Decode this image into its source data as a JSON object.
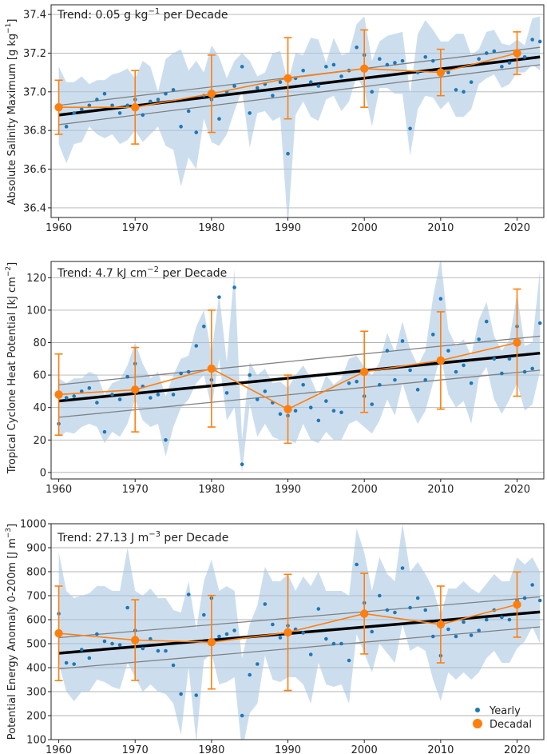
{
  "colors": {
    "yearly": "#1f77b4",
    "decadal": "#ff7f0e",
    "band": "#aac8e2",
    "trend_line": "#000000",
    "trend_ci": "#808080",
    "grid": "#b0b0b0"
  },
  "legend": {
    "yearly": "Yearly",
    "decadal": "Decadal",
    "position": "bottom-right"
  },
  "chart_data": [
    {
      "type": "scatter",
      "id": "salinity",
      "ylabel": "Absolute Salinity Maximum [g kg$^{-1}$]",
      "ylabel_parts": [
        "Absolute Salinity Maximum [g kg",
        "−1",
        "]"
      ],
      "trend_parts": [
        "Trend: 0.05 g kg",
        "−1",
        " per Decade"
      ],
      "xlim": [
        1959,
        2023.5
      ],
      "ylim": [
        36.35,
        37.45
      ],
      "xticks": [
        1960,
        1970,
        1980,
        1990,
        2000,
        2010,
        2020
      ],
      "yticks": [
        36.4,
        36.6,
        36.8,
        37.0,
        37.2,
        37.4
      ],
      "ytick_labels": [
        "36.4",
        "36.6",
        "36.8",
        "37.0",
        "37.2",
        "37.4"
      ],
      "years": [
        1960,
        1961,
        1962,
        1963,
        1964,
        1965,
        1966,
        1967,
        1968,
        1969,
        1970,
        1971,
        1972,
        1973,
        1974,
        1975,
        1976,
        1977,
        1978,
        1979,
        1980,
        1981,
        1982,
        1983,
        1984,
        1985,
        1986,
        1987,
        1988,
        1989,
        1990,
        1991,
        1992,
        1993,
        1994,
        1995,
        1996,
        1997,
        1998,
        1999,
        2000,
        2001,
        2002,
        2003,
        2004,
        2005,
        2006,
        2007,
        2008,
        2009,
        2010,
        2011,
        2012,
        2013,
        2014,
        2015,
        2016,
        2017,
        2018,
        2019,
        2020,
        2021,
        2022,
        2023
      ],
      "yearly": [
        36.93,
        36.82,
        36.89,
        36.91,
        36.93,
        36.96,
        36.99,
        36.93,
        36.89,
        36.93,
        36.96,
        36.88,
        36.95,
        36.96,
        36.99,
        37.01,
        36.82,
        36.9,
        36.79,
        36.98,
        36.96,
        36.86,
        37.0,
        37.03,
        37.13,
        36.89,
        37.02,
        37.04,
        36.98,
        37.05,
        36.68,
        37.07,
        37.11,
        37.05,
        37.03,
        37.13,
        37.14,
        37.08,
        37.11,
        37.23,
        37.19,
        37.0,
        37.17,
        37.14,
        37.15,
        37.16,
        36.81,
        37.1,
        37.18,
        37.16,
        37.1,
        37.1,
        37.01,
        37.0,
        37.05,
        37.17,
        37.2,
        37.21,
        37.13,
        37.15,
        37.2,
        37.18,
        37.27,
        37.26
      ],
      "band_upper": [
        37.13,
        37.05,
        37.05,
        37.08,
        37.04,
        37.06,
        37.06,
        37.09,
        37.1,
        37.12,
        37.07,
        37.16,
        37.13,
        37.0,
        37.17,
        37.2,
        37.22,
        37.11,
        37.16,
        37.1,
        37.24,
        37.18,
        37.07,
        37.16,
        37.2,
        37.16,
        37.08,
        37.1,
        37.2,
        37.21,
        37.05,
        37.2,
        37.19,
        37.28,
        37.27,
        37.15,
        37.28,
        37.19,
        37.2,
        37.35,
        37.39,
        37.16,
        37.26,
        37.29,
        37.3,
        37.31,
        36.99,
        37.3,
        37.37,
        37.32,
        37.26,
        37.26,
        37.3,
        37.3,
        37.19,
        37.22,
        37.31,
        37.32,
        37.25,
        37.24,
        37.27,
        37.24,
        37.38,
        37.39
      ],
      "band_lower": [
        36.73,
        36.63,
        36.73,
        36.74,
        36.82,
        36.78,
        36.76,
        36.78,
        36.73,
        36.75,
        36.8,
        36.74,
        36.78,
        36.82,
        36.72,
        36.7,
        36.51,
        36.66,
        36.6,
        36.86,
        36.74,
        36.72,
        36.78,
        36.9,
        37.01,
        36.71,
        36.89,
        36.9,
        36.85,
        36.87,
        36.3,
        36.88,
        36.95,
        36.87,
        36.85,
        36.96,
        36.98,
        36.9,
        36.95,
        37.08,
        37.01,
        36.82,
        37.02,
        37.02,
        36.99,
        36.99,
        36.67,
        36.91,
        36.98,
        36.97,
        36.91,
        36.95,
        36.87,
        36.87,
        36.91,
        37.04,
        37.07,
        37.09,
        37.02,
        37.04,
        37.1,
        37.1,
        37.14,
        37.11
      ],
      "decadal": {
        "x": [
          1960,
          1970,
          1980,
          1990,
          2000,
          2010,
          2020
        ],
        "y": [
          36.92,
          36.92,
          36.99,
          37.07,
          37.12,
          37.1,
          37.2
        ],
        "err": [
          0.14,
          0.19,
          0.2,
          0.21,
          0.2,
          0.12,
          0.11
        ]
      },
      "trend": {
        "x": [
          1960,
          2023
        ],
        "y": [
          36.88,
          37.18
        ],
        "ci_upper": [
          36.93,
          37.23
        ],
        "ci_lower": [
          36.83,
          37.14
        ]
      }
    },
    {
      "type": "scatter",
      "id": "tchp",
      "ylabel": "Tropical Cyclone Heat Potential [kJ cm$^{-2}$]",
      "ylabel_parts": [
        "Tropical Cyclone Heat Potential [kJ cm",
        "−2",
        "]"
      ],
      "trend_parts": [
        "Trend: 4.7 kJ cm",
        "−2",
        " per Decade"
      ],
      "xlim": [
        1959,
        2023.5
      ],
      "ylim": [
        -4,
        130
      ],
      "xticks": [
        1960,
        1970,
        1980,
        1990,
        2000,
        2010,
        2020
      ],
      "yticks": [
        0,
        20,
        40,
        60,
        80,
        100,
        120
      ],
      "ytick_labels": [
        "0",
        "20",
        "40",
        "60",
        "80",
        "100",
        "120"
      ],
      "years": [
        1960,
        1961,
        1962,
        1963,
        1964,
        1965,
        1966,
        1967,
        1968,
        1969,
        1970,
        1971,
        1972,
        1973,
        1974,
        1975,
        1976,
        1977,
        1978,
        1979,
        1980,
        1981,
        1982,
        1983,
        1984,
        1985,
        1986,
        1987,
        1988,
        1989,
        1990,
        1991,
        1992,
        1993,
        1994,
        1995,
        1996,
        1997,
        1998,
        1999,
        2000,
        2001,
        2002,
        2003,
        2004,
        2005,
        2006,
        2007,
        2008,
        2009,
        2010,
        2011,
        2012,
        2013,
        2014,
        2015,
        2016,
        2017,
        2018,
        2019,
        2020,
        2021,
        2022,
        2023
      ],
      "yearly": [
        30,
        46,
        47,
        50,
        52,
        43,
        25,
        48,
        45,
        59,
        67,
        53,
        46,
        48,
        20,
        48,
        61,
        62,
        78,
        90,
        57,
        108,
        49,
        114,
        5,
        60,
        45,
        50,
        43,
        36,
        35,
        38,
        54,
        40,
        32,
        44,
        38,
        37,
        55,
        56,
        47,
        42,
        54,
        75,
        57,
        81,
        63,
        51,
        57,
        85,
        107,
        75,
        62,
        66,
        55,
        82,
        93,
        70,
        61,
        70,
        90,
        62,
        64,
        92
      ],
      "band_upper": [
        58,
        55,
        58,
        58,
        62,
        60,
        48,
        55,
        57,
        66,
        80,
        67,
        58,
        62,
        47,
        60,
        70,
        72,
        90,
        100,
        73,
        110,
        68,
        125,
        20,
        68,
        60,
        64,
        55,
        56,
        52,
        60,
        66,
        58,
        47,
        60,
        54,
        58,
        70,
        72,
        65,
        60,
        68,
        86,
        74,
        93,
        76,
        66,
        75,
        108,
        132,
        88,
        78,
        82,
        72,
        94,
        105,
        84,
        75,
        82,
        110,
        78,
        80,
        125
      ],
      "band_lower": [
        22,
        25,
        24,
        28,
        30,
        28,
        18,
        25,
        22,
        30,
        45,
        32,
        28,
        30,
        10,
        28,
        40,
        45,
        55,
        60,
        40,
        70,
        32,
        40,
        0,
        42,
        22,
        30,
        22,
        20,
        20,
        18,
        30,
        20,
        18,
        25,
        20,
        20,
        30,
        32,
        28,
        24,
        32,
        45,
        35,
        55,
        40,
        30,
        38,
        55,
        72,
        48,
        40,
        44,
        30,
        58,
        65,
        45,
        36,
        45,
        55,
        38,
        42,
        62
      ],
      "decadal": {
        "x": [
          1960,
          1970,
          1980,
          1990,
          2000,
          2010,
          2020
        ],
        "y": [
          48,
          51,
          64,
          39,
          62,
          69,
          80
        ],
        "err": [
          25,
          26,
          36,
          21,
          25,
          30,
          33
        ]
      },
      "trend": {
        "x": [
          1960,
          2023
        ],
        "y": [
          44,
          73.5
        ],
        "ci_upper": [
          54,
          84
        ],
        "ci_lower": [
          34,
          63
        ]
      }
    },
    {
      "type": "scatter",
      "id": "pea",
      "ylabel": "Potential Energy Anomaly 0-200m [J m$^{-3}$]",
      "ylabel_parts": [
        "Potential Energy Anomaly 0-200m [J m",
        "−3",
        "]"
      ],
      "trend_parts": [
        "Trend: 27.13 J m",
        "−3",
        " per Decade"
      ],
      "xlim": [
        1959,
        2023.5
      ],
      "ylim": [
        100,
        1000
      ],
      "xticks": [
        1960,
        1970,
        1980,
        1990,
        2000,
        2010,
        2020
      ],
      "yticks": [
        100,
        200,
        300,
        400,
        500,
        600,
        700,
        800,
        900,
        1000
      ],
      "ytick_labels": [
        "100",
        "200",
        "300",
        "400",
        "500",
        "600",
        "700",
        "800",
        "900",
        "1000"
      ],
      "years": [
        1960,
        1961,
        1962,
        1963,
        1964,
        1965,
        1966,
        1967,
        1968,
        1969,
        1970,
        1971,
        1972,
        1973,
        1974,
        1975,
        1976,
        1977,
        1978,
        1979,
        1980,
        1981,
        1982,
        1983,
        1984,
        1985,
        1986,
        1987,
        1988,
        1989,
        1990,
        1991,
        1992,
        1993,
        1994,
        1995,
        1996,
        1997,
        1998,
        1999,
        2000,
        2001,
        2002,
        2003,
        2004,
        2005,
        2006,
        2007,
        2008,
        2009,
        2010,
        2011,
        2012,
        2013,
        2014,
        2015,
        2016,
        2017,
        2018,
        2019,
        2020,
        2021,
        2022,
        2023
      ],
      "yearly": [
        625,
        420,
        415,
        475,
        440,
        540,
        510,
        500,
        495,
        650,
        555,
        480,
        520,
        470,
        470,
        410,
        290,
        705,
        285,
        620,
        690,
        530,
        540,
        555,
        200,
        370,
        415,
        665,
        580,
        525,
        575,
        560,
        545,
        455,
        645,
        520,
        500,
        500,
        430,
        830,
        670,
        550,
        700,
        640,
        630,
        815,
        650,
        690,
        640,
        530,
        450,
        560,
        530,
        590,
        535,
        555,
        600,
        640,
        610,
        600,
        680,
        690,
        745,
        680
      ],
      "band_upper": [
        880,
        720,
        690,
        700,
        710,
        740,
        740,
        720,
        720,
        900,
        720,
        700,
        730,
        690,
        690,
        640,
        630,
        760,
        560,
        760,
        850,
        720,
        740,
        720,
        440,
        580,
        660,
        820,
        760,
        760,
        790,
        720,
        780,
        740,
        800,
        720,
        720,
        720,
        700,
        980,
        880,
        720,
        860,
        790,
        760,
        1000,
        800,
        840,
        790,
        730,
        620,
        730,
        730,
        760,
        730,
        710,
        750,
        790,
        760,
        760,
        860,
        830,
        860,
        800
      ],
      "band_lower": [
        420,
        300,
        260,
        300,
        300,
        350,
        340,
        320,
        310,
        420,
        360,
        300,
        330,
        300,
        290,
        250,
        120,
        400,
        90,
        430,
        460,
        330,
        340,
        360,
        50,
        210,
        250,
        450,
        350,
        340,
        360,
        360,
        330,
        250,
        420,
        330,
        320,
        330,
        250,
        540,
        460,
        380,
        500,
        460,
        420,
        580,
        470,
        490,
        470,
        350,
        260,
        380,
        350,
        380,
        350,
        380,
        440,
        470,
        420,
        420,
        480,
        510,
        570,
        500
      ],
      "decadal": {
        "x": [
          1960,
          1970,
          1980,
          1990,
          2000,
          2010,
          2020
        ],
        "y": [
          543,
          515,
          506,
          547,
          625,
          580,
          663
        ],
        "err": [
          197,
          168,
          195,
          242,
          168,
          160,
          136
        ]
      },
      "trend": {
        "x": [
          1960,
          2023
        ],
        "y": [
          460,
          632
        ],
        "ci_upper": [
          525,
          695
        ],
        "ci_lower": [
          395,
          570
        ]
      }
    }
  ]
}
